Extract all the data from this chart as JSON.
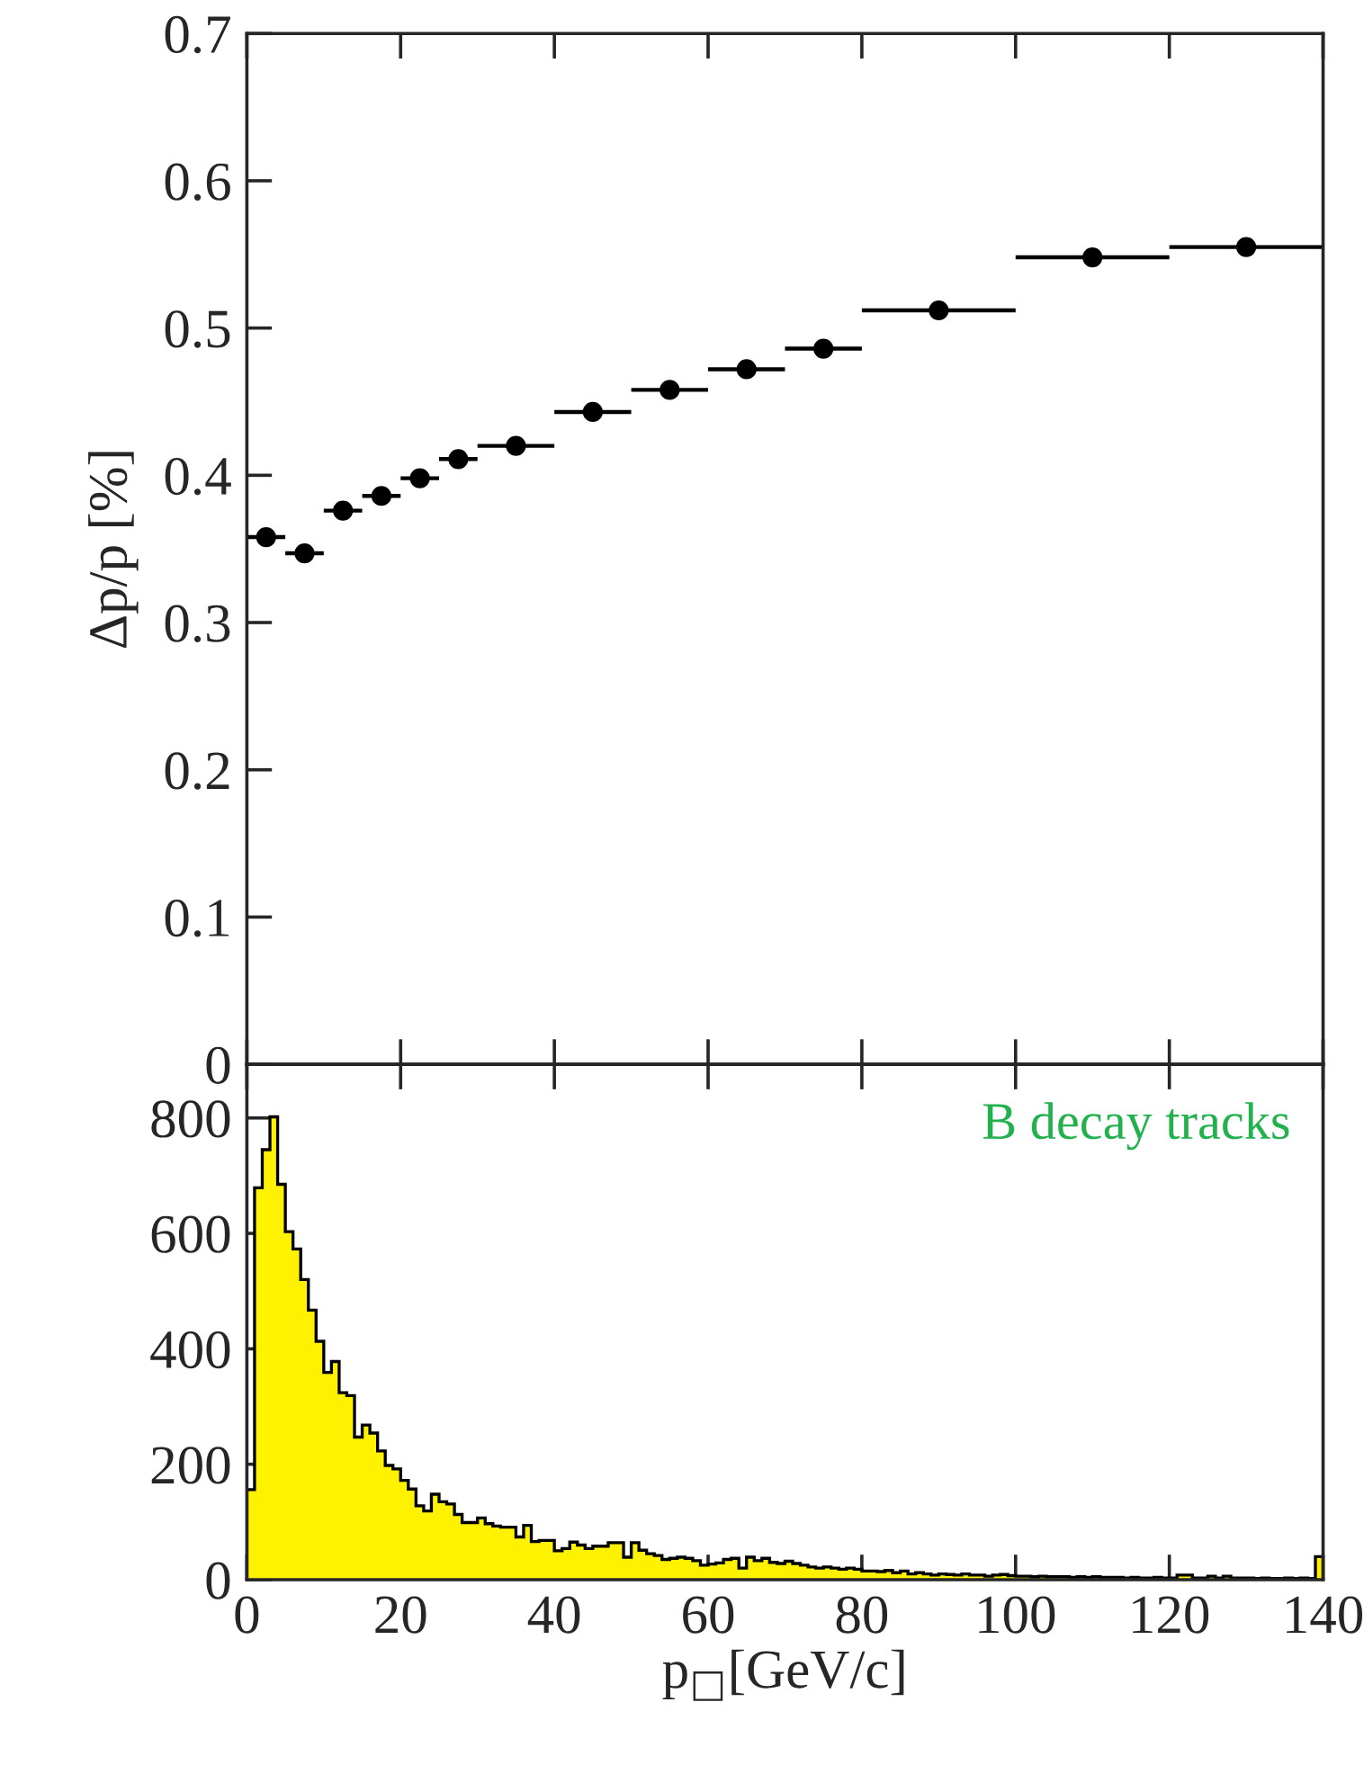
{
  "chart_data": [
    {
      "type": "scatter",
      "ylabel": "Δp/p [%]",
      "x": [
        2.5,
        7.5,
        12.5,
        17.5,
        22.5,
        27.5,
        35,
        45,
        55,
        65,
        75,
        90,
        110,
        130
      ],
      "values": [
        0.358,
        0.347,
        0.376,
        0.386,
        0.398,
        0.411,
        0.42,
        0.443,
        0.458,
        0.472,
        0.486,
        0.512,
        0.548,
        0.555
      ],
      "xerrors": [
        2.5,
        2.5,
        2.5,
        2.5,
        2.5,
        2.5,
        5,
        5,
        5,
        5,
        5,
        10,
        10,
        10
      ],
      "errors": [
        null,
        null,
        null,
        null,
        null,
        null,
        null,
        null,
        null,
        null,
        null,
        null,
        null,
        0.005
      ],
      "color": "#000000",
      "marker": "circle",
      "xlim": [
        0,
        140
      ],
      "xticks": [
        0,
        20,
        40,
        60,
        80,
        100,
        120,
        140
      ],
      "ylim": [
        0,
        0.7
      ],
      "yticks": [
        0,
        0.1,
        0.2,
        0.3,
        0.4,
        0.5,
        0.6,
        0.7
      ],
      "tick_labels": "y",
      "grid": false
    },
    {
      "type": "histogram",
      "xlabel": "p$_{□}$[GeV/c]",
      "color": "#fff200",
      "annotations": [
        "B decay tracks"
      ],
      "bins": [
        0,
        1,
        2,
        3,
        4,
        5,
        6,
        7,
        8,
        9,
        10,
        11,
        12,
        13,
        14,
        15,
        16,
        17,
        18,
        19,
        20,
        21,
        22,
        23,
        24,
        25,
        26,
        27,
        28,
        29,
        30,
        31,
        32,
        33,
        34,
        35,
        36,
        37,
        38,
        39,
        40,
        41,
        42,
        43,
        44,
        45,
        46,
        47,
        48,
        49,
        50,
        51,
        52,
        53,
        54,
        55,
        56,
        57,
        58,
        59,
        60,
        61,
        62,
        63,
        64,
        65,
        66,
        67,
        68,
        69,
        70,
        71,
        72,
        73,
        74,
        75,
        76,
        77,
        78,
        79,
        80,
        81,
        82,
        83,
        84,
        85,
        86,
        87,
        88,
        89,
        90,
        91,
        92,
        93,
        94,
        95,
        96,
        97,
        98,
        99,
        100,
        101,
        102,
        103,
        104,
        105,
        106,
        107,
        108,
        109,
        110,
        111,
        112,
        113,
        114,
        115,
        116,
        117,
        118,
        119,
        120,
        121,
        122,
        123,
        124,
        125,
        126,
        127,
        128,
        129,
        130,
        131,
        132,
        133,
        134,
        135,
        136,
        137,
        138,
        139,
        140
      ],
      "values": [
        156,
        679,
        745,
        802,
        685,
        603,
        573,
        520,
        467,
        413,
        359,
        378,
        324,
        319,
        247,
        268,
        254,
        223,
        198,
        192,
        172,
        157,
        128,
        119,
        148,
        135,
        131,
        113,
        99,
        99,
        107,
        97,
        93,
        91,
        91,
        74,
        94,
        66,
        68,
        68,
        50,
        54,
        65,
        60,
        54,
        58,
        58,
        64,
        64,
        39,
        64,
        51,
        45,
        42,
        35,
        37,
        39,
        37,
        33,
        25,
        27,
        29,
        35,
        37,
        20,
        39,
        33,
        37,
        30,
        28,
        32,
        28,
        25,
        22,
        20,
        22,
        20,
        18,
        20,
        18,
        15,
        15,
        14,
        16,
        12,
        15,
        10,
        12,
        10,
        8,
        10,
        9,
        8,
        10,
        8,
        8,
        6,
        8,
        9,
        7,
        6,
        6,
        5,
        6,
        5,
        5,
        5,
        4,
        5,
        4,
        5,
        4,
        4,
        4,
        3,
        4,
        3,
        3,
        4,
        3,
        3,
        8,
        8,
        3,
        3,
        6,
        3,
        6,
        3,
        3,
        3,
        2,
        3,
        2,
        2,
        3,
        2,
        3,
        2,
        40
      ],
      "xlim": [
        0,
        140
      ],
      "xticks": [
        0,
        20,
        40,
        60,
        80,
        100,
        120,
        140
      ],
      "ylim": [
        0,
        893
      ],
      "yticks": [
        0,
        200,
        400,
        600,
        800
      ],
      "grid": false
    }
  ]
}
